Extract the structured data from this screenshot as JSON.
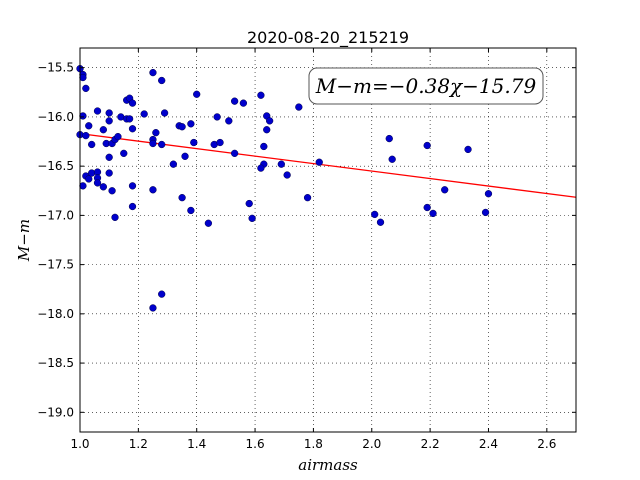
{
  "chart_data": {
    "type": "scatter",
    "title": "2020-08-20_215219",
    "xlabel": "airmass",
    "ylabel": "M−m",
    "xlim": [
      1.0,
      2.7
    ],
    "ylim": [
      -19.2,
      -15.3
    ],
    "y_inverted": true,
    "grid": true,
    "grid_style": "dotted",
    "xticks": [
      1.0,
      1.2,
      1.4,
      1.6,
      1.8,
      2.0,
      2.2,
      2.4,
      2.6
    ],
    "xtick_labels": [
      "1.0",
      "1.2",
      "1.4",
      "1.6",
      "1.8",
      "2.0",
      "2.2",
      "2.4",
      "2.6"
    ],
    "yticks": [
      -15.5,
      -16.0,
      -16.5,
      -17.0,
      -17.5,
      -18.0,
      -18.5,
      -19.0
    ],
    "ytick_labels": [
      "−15.5",
      "−16.0",
      "−16.5",
      "−17.0",
      "−17.5",
      "−18.0",
      "−18.5",
      "−19.0"
    ],
    "annotation": "M−m=−0.38χ−15.79",
    "annotation_position": "top-right",
    "colors": {
      "points": "#0000cc",
      "fit_line": "#ff0000"
    },
    "fit": {
      "slope": -0.38,
      "intercept": -15.79,
      "x_range": [
        1.0,
        2.7
      ]
    },
    "series": [
      {
        "values": [
          [
            1.0,
            -15.51
          ],
          [
            1.01,
            -15.57
          ],
          [
            1.01,
            -15.6
          ],
          [
            1.02,
            -15.71
          ],
          [
            1.01,
            -15.99
          ],
          [
            1.03,
            -16.09
          ],
          [
            1.0,
            -16.18
          ],
          [
            1.02,
            -16.19
          ],
          [
            1.04,
            -16.28
          ],
          [
            1.06,
            -15.94
          ],
          [
            1.08,
            -16.13
          ],
          [
            1.09,
            -16.27
          ],
          [
            1.1,
            -16.04
          ],
          [
            1.1,
            -15.96
          ],
          [
            1.11,
            -16.27
          ],
          [
            1.12,
            -16.23
          ],
          [
            1.13,
            -16.2
          ],
          [
            1.14,
            -16.0
          ],
          [
            1.15,
            -16.37
          ],
          [
            1.16,
            -15.83
          ],
          [
            1.17,
            -15.81
          ],
          [
            1.16,
            -16.02
          ],
          [
            1.17,
            -16.02
          ],
          [
            1.18,
            -16.12
          ],
          [
            1.18,
            -15.86
          ],
          [
            1.1,
            -16.41
          ],
          [
            1.02,
            -16.6
          ],
          [
            1.03,
            -16.63
          ],
          [
            1.04,
            -16.57
          ],
          [
            1.06,
            -16.56
          ],
          [
            1.06,
            -16.62
          ],
          [
            1.06,
            -16.67
          ],
          [
            1.08,
            -16.71
          ],
          [
            1.1,
            -16.57
          ],
          [
            1.11,
            -16.75
          ],
          [
            1.01,
            -16.7
          ],
          [
            1.12,
            -17.02
          ],
          [
            1.18,
            -16.7
          ],
          [
            1.18,
            -16.91
          ],
          [
            1.22,
            -15.97
          ],
          [
            1.25,
            -16.23
          ],
          [
            1.25,
            -16.27
          ],
          [
            1.26,
            -16.16
          ],
          [
            1.28,
            -16.28
          ],
          [
            1.28,
            -15.63
          ],
          [
            1.25,
            -15.55
          ],
          [
            1.29,
            -15.96
          ],
          [
            1.25,
            -16.74
          ],
          [
            1.32,
            -16.48
          ],
          [
            1.34,
            -16.09
          ],
          [
            1.35,
            -16.1
          ],
          [
            1.35,
            -16.82
          ],
          [
            1.36,
            -16.4
          ],
          [
            1.38,
            -16.07
          ],
          [
            1.39,
            -16.26
          ],
          [
            1.38,
            -16.95
          ],
          [
            1.4,
            -15.77
          ],
          [
            1.25,
            -17.94
          ],
          [
            1.28,
            -17.8
          ],
          [
            1.44,
            -17.08
          ],
          [
            1.46,
            -16.28
          ],
          [
            1.47,
            -16.0
          ],
          [
            1.48,
            -16.26
          ],
          [
            1.51,
            -16.04
          ],
          [
            1.53,
            -15.84
          ],
          [
            1.53,
            -16.37
          ],
          [
            1.56,
            -15.86
          ],
          [
            1.58,
            -16.88
          ],
          [
            1.59,
            -17.03
          ],
          [
            1.62,
            -15.78
          ],
          [
            1.63,
            -16.48
          ],
          [
            1.62,
            -16.52
          ],
          [
            1.63,
            -16.3
          ],
          [
            1.64,
            -16.13
          ],
          [
            1.64,
            -15.99
          ],
          [
            1.65,
            -16.04
          ],
          [
            1.69,
            -16.48
          ],
          [
            1.71,
            -16.59
          ],
          [
            1.75,
            -15.9
          ],
          [
            1.78,
            -16.82
          ],
          [
            1.82,
            -16.46
          ],
          [
            2.01,
            -16.99
          ],
          [
            2.03,
            -17.07
          ],
          [
            2.06,
            -16.22
          ],
          [
            2.07,
            -16.43
          ],
          [
            2.19,
            -16.29
          ],
          [
            2.19,
            -16.92
          ],
          [
            2.21,
            -16.98
          ],
          [
            2.25,
            -16.74
          ],
          [
            2.33,
            -16.33
          ],
          [
            2.39,
            -16.97
          ],
          [
            2.4,
            -16.78
          ]
        ]
      }
    ]
  }
}
